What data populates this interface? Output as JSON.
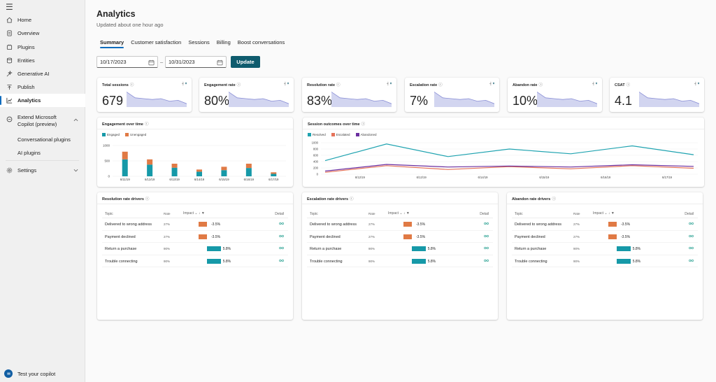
{
  "sidebar": {
    "items": [
      {
        "label": "Home",
        "icon": "home-icon"
      },
      {
        "label": "Overview",
        "icon": "document-icon"
      },
      {
        "label": "Plugins",
        "icon": "plugin-icon"
      },
      {
        "label": "Entities",
        "icon": "database-icon"
      },
      {
        "label": "Generative AI",
        "icon": "sparkle-icon"
      },
      {
        "label": "Publish",
        "icon": "publish-icon"
      },
      {
        "label": "Analytics",
        "icon": "chart-icon"
      },
      {
        "label": "Extend Microsoft Copilot (preview)",
        "icon": "copilot-icon"
      },
      {
        "label": "Settings",
        "icon": "gear-icon"
      }
    ],
    "sub_items": [
      "Conversational plugins",
      "AI plugins"
    ],
    "test_copilot": "Test your copilot"
  },
  "header": {
    "title": "Analytics",
    "subtitle": "Updated about one hour ago"
  },
  "tabs": [
    "Summary",
    "Customer satisfaction",
    "Sessions",
    "Billing",
    "Boost conversations"
  ],
  "filters": {
    "start_date": "10/17/2023",
    "end_date": "10/31/2023",
    "separator": "–",
    "update_label": "Update"
  },
  "kpis": [
    {
      "label": "Total sessions",
      "value": "679",
      "spark": [
        0.9,
        0.55,
        0.5,
        0.45,
        0.5,
        0.35,
        0.4,
        0.2
      ]
    },
    {
      "label": "Engagement rate",
      "value": "80%",
      "spark": [
        0.9,
        0.55,
        0.5,
        0.45,
        0.5,
        0.35,
        0.4,
        0.2
      ]
    },
    {
      "label": "Resolution rate",
      "value": "83%",
      "spark": [
        0.9,
        0.55,
        0.5,
        0.45,
        0.5,
        0.35,
        0.4,
        0.2
      ]
    },
    {
      "label": "Escalation rate",
      "value": "7%",
      "spark": [
        0.9,
        0.55,
        0.5,
        0.45,
        0.5,
        0.35,
        0.4,
        0.2
      ]
    },
    {
      "label": "Abandon rate",
      "value": "10%",
      "spark": [
        0.9,
        0.55,
        0.5,
        0.45,
        0.5,
        0.35,
        0.4,
        0.2
      ]
    },
    {
      "label": "CSAT",
      "value": "4.1",
      "spark": [
        0.9,
        0.55,
        0.5,
        0.45,
        0.5,
        0.35,
        0.4,
        0.2
      ]
    }
  ],
  "colors": {
    "engaged": "#1699a8",
    "unengaged": "#e07a45",
    "resolved": "#1fa3b0",
    "escalated": "#e5735a",
    "abandoned": "#6b2fa0",
    "spark_fill": "#d2d5f0",
    "spark_line": "#8a8fd6",
    "accent": "#0f5c6e"
  },
  "engagement_panel": {
    "title": "Engagement over time"
  },
  "outcomes_panel": {
    "title": "Session outcomes over time"
  },
  "chart_data": [
    {
      "type": "bar",
      "title": "Engagement over time",
      "categories": [
        "6/11/19",
        "6/12/19",
        "6/13/19",
        "6/14/19",
        "6/15/19",
        "6/16/19",
        "6/17/19"
      ],
      "series": [
        {
          "name": "Engaged",
          "values": [
            550,
            380,
            280,
            150,
            200,
            270,
            80
          ]
        },
        {
          "name": "Unengaged",
          "values": [
            250,
            170,
            130,
            70,
            110,
            140,
            50
          ]
        }
      ],
      "yticks": [
        "1000",
        "500",
        "0"
      ],
      "ylim": [
        0,
        1000
      ],
      "stacked": true
    },
    {
      "type": "line",
      "title": "Session outcomes over time",
      "categories": [
        "6/12/19",
        "6/12/19",
        "6/12/19",
        "6/14/19",
        "6/15/19",
        "6/16/19",
        "6/17/19"
      ],
      "series": [
        {
          "name": "Resolved",
          "values": [
            430,
            960,
            560,
            800,
            650,
            900,
            620
          ]
        },
        {
          "name": "Escalated",
          "values": [
            60,
            270,
            150,
            240,
            170,
            270,
            190
          ]
        },
        {
          "name": "Abandoned",
          "values": [
            100,
            310,
            230,
            260,
            230,
            300,
            250
          ]
        }
      ],
      "yticks": [
        "1000",
        "800",
        "600",
        "400",
        "200",
        "0"
      ],
      "ylim": [
        0,
        1000
      ]
    }
  ],
  "driver_panels": [
    {
      "title": "Resolution rate drivers"
    },
    {
      "title": "Escalation rate drivers"
    },
    {
      "title": "Abandon rate drivers"
    }
  ],
  "driver_headers": {
    "topic": "Topic",
    "rate": "Rate",
    "impact": "Impact",
    "detail": "Detail"
  },
  "driver_rows": [
    [
      {
        "topic": "Delivered to wrong address",
        "rate": "27%",
        "impact": -3.5,
        "impact_label": "-3.5%"
      },
      {
        "topic": "Payment declined",
        "rate": "27%",
        "impact": -3.5,
        "impact_label": "-3.5%"
      },
      {
        "topic": "Return a purchase",
        "rate": "90%",
        "impact": 5.8,
        "impact_label": "5.8%"
      },
      {
        "topic": "Trouble connecting",
        "rate": "90%",
        "impact": 5.8,
        "impact_label": "5.8%"
      }
    ],
    [
      {
        "topic": "Delivered to wrong address",
        "rate": "27%",
        "impact": -3.5,
        "impact_label": "-3.5%"
      },
      {
        "topic": "Payment declined",
        "rate": "27%",
        "impact": -3.5,
        "impact_label": "-3.5%"
      },
      {
        "topic": "Return a purchase",
        "rate": "90%",
        "impact": 5.8,
        "impact_label": "5.8%"
      },
      {
        "topic": "Trouble connecting",
        "rate": "90%",
        "impact": 5.8,
        "impact_label": "5.8%"
      }
    ],
    [
      {
        "topic": "Delivered to wrong address",
        "rate": "27%",
        "impact": -3.5,
        "impact_label": "-3.5%"
      },
      {
        "topic": "Payment declined",
        "rate": "27%",
        "impact": -3.5,
        "impact_label": "-3.5%"
      },
      {
        "topic": "Return a purchase",
        "rate": "90%",
        "impact": 5.8,
        "impact_label": "5.8%"
      },
      {
        "topic": "Trouble connecting",
        "rate": "90%",
        "impact": 5.8,
        "impact_label": "5.8%"
      }
    ]
  ]
}
